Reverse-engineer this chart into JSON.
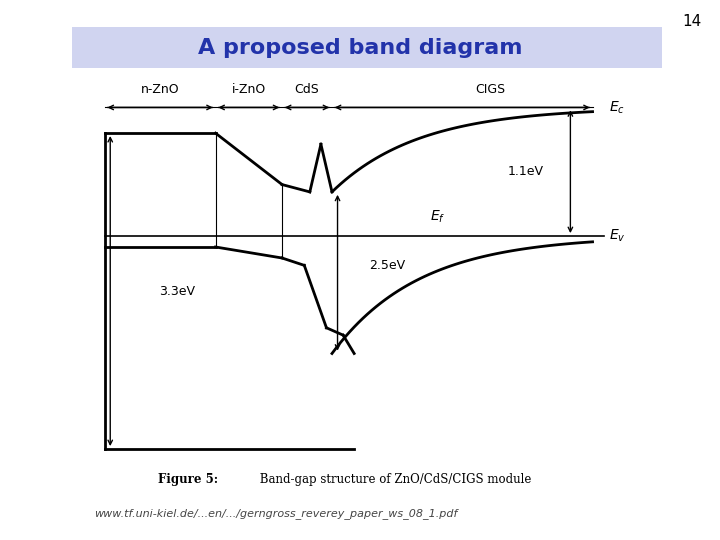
{
  "title": "A proposed band diagram",
  "title_bg": "#d0d4f0",
  "slide_number": "14",
  "figure_caption_bold": "Figure 5:",
  "figure_caption_normal": " Band-gap structure of ZnO/CdS/CIGS module",
  "url_text": "www.tf.uni-kiel.de/...en/.../gerngross_reverey_paper_ws_08_1.pdf",
  "background_color": "#ffffff",
  "regions": [
    "n-ZnO",
    "i-ZnO",
    "CdS",
    "CIGS"
  ],
  "line_color": "#000000",
  "line_width": 2.0,
  "region_label_fontsize": 9,
  "annotation_fontsize": 9,
  "Ef_label": "E_f",
  "Ec_label": "E_c",
  "Ev_label": "E_v",
  "gap_11": "1.1eV",
  "gap_25": "2.5eV",
  "gap_33": "3.3eV"
}
